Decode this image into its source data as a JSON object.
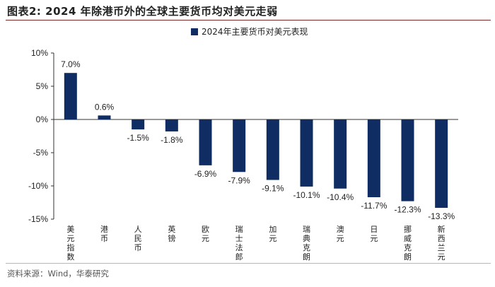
{
  "figure": {
    "title": "图表2:  2024 年除港币外的全球主要货币均对美元走弱",
    "source": "资料来源：Wind，华泰研究"
  },
  "colors": {
    "bar": "#0f2d62",
    "axis": "#333333",
    "title_rule": "#7a2b26"
  },
  "chart_data": {
    "type": "bar",
    "title": "",
    "xlabel": "",
    "ylabel": "",
    "legend": [
      "2024年主要货币对美元表现"
    ],
    "legend_position": "top-center",
    "categories": [
      "美元指数",
      "港币",
      "人民币",
      "英镑",
      "欧元",
      "瑞士法郎",
      "加元",
      "瑞典克朗",
      "澳元",
      "日元",
      "挪威克朗",
      "新西兰元"
    ],
    "series": [
      {
        "name": "2024年主要货币对美元表现",
        "values": [
          7.0,
          0.6,
          -1.5,
          -1.8,
          -6.9,
          -7.9,
          -9.1,
          -10.1,
          -10.4,
          -11.7,
          -12.3,
          -13.3
        ]
      }
    ],
    "value_labels": [
      "7.0%",
      "0.6%",
      "-1.5%",
      "-1.8%",
      "-6.9%",
      "-7.9%",
      "-9.1%",
      "-10.1%",
      "-10.4%",
      "-11.7%",
      "-12.3%",
      "-13.3%"
    ],
    "ylim": [
      -15,
      10
    ],
    "yticks": [
      10,
      5,
      0,
      -5,
      -10,
      -15
    ],
    "ytick_labels": [
      "10%",
      "5%",
      "0%",
      "-5%",
      "-10%",
      "-15%"
    ],
    "grid": false
  }
}
